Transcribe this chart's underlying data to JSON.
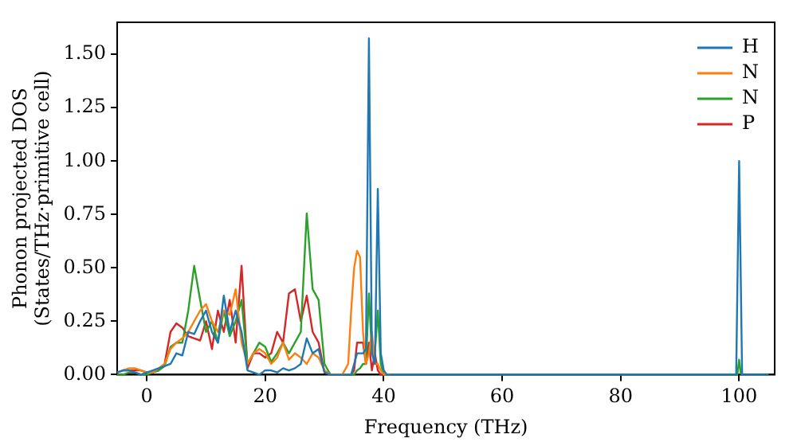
{
  "chart_data": {
    "type": "line",
    "xlabel": "Frequency (THz)",
    "ylabel": "Phonon projected DOS\n(States/THz·primitive cell)",
    "x": [
      -5,
      -4,
      -3,
      -2,
      -1,
      0,
      1,
      2,
      3,
      4,
      5,
      6,
      7,
      8,
      9,
      10,
      11,
      12,
      13,
      14,
      15,
      16,
      17,
      18,
      19,
      20,
      21,
      22,
      23,
      24,
      25,
      26,
      27,
      28,
      29,
      30,
      31,
      32,
      33,
      34,
      34.5,
      35,
      35.5,
      36,
      36.5,
      37,
      37.5,
      38,
      38.5,
      39,
      39.5,
      40,
      40.5,
      41,
      45,
      99,
      99.5,
      100,
      100.5,
      101,
      105
    ],
    "series": [
      {
        "name": "H",
        "color": "#1f77b4",
        "values": [
          0.01,
          0.02,
          0.02,
          0.01,
          0,
          0.01,
          0.02,
          0.03,
          0.04,
          0.05,
          0.1,
          0.09,
          0.2,
          0.19,
          0.25,
          0.3,
          0.2,
          0.15,
          0.37,
          0.2,
          0.3,
          0.2,
          0.02,
          0.01,
          0,
          0.02,
          0.02,
          0.01,
          0.03,
          0.02,
          0.03,
          0.05,
          0.17,
          0.1,
          0.12,
          0.01,
          0,
          0,
          0,
          0,
          0,
          0.05,
          0.1,
          0.1,
          0.1,
          0.12,
          1.575,
          0.1,
          0.05,
          0.87,
          0.1,
          0.02,
          0,
          0,
          0,
          0,
          0,
          1.0,
          0,
          0,
          0
        ]
      },
      {
        "name": "N",
        "color": "#ff7f0e",
        "x": [
          -5,
          -4,
          -3,
          -2,
          -1,
          0,
          1,
          2,
          3,
          4,
          5,
          6,
          7,
          8,
          9,
          10,
          11,
          12,
          13,
          14,
          15,
          16,
          17,
          18,
          19,
          20,
          21,
          22,
          23,
          24,
          25,
          26,
          27,
          28,
          29,
          30,
          31,
          32,
          33,
          34,
          34.5,
          35,
          35.5,
          36,
          36.5,
          37,
          37.5,
          38,
          38.5,
          39,
          39.5,
          40,
          40.5,
          41
        ],
        "values": [
          0.01,
          0.02,
          0.03,
          0.03,
          0.02,
          0.01,
          0.01,
          0.03,
          0.05,
          0.12,
          0.15,
          0.17,
          0.2,
          0.25,
          0.3,
          0.33,
          0.25,
          0.2,
          0.3,
          0.28,
          0.4,
          0.15,
          0.05,
          0.1,
          0.12,
          0.1,
          0.05,
          0.08,
          0.15,
          0.07,
          0.1,
          0.08,
          0.05,
          0.1,
          0.08,
          0.02,
          0,
          0,
          0,
          0.05,
          0.3,
          0.5,
          0.58,
          0.55,
          0.2,
          0.05,
          0.1,
          0.2,
          0.05,
          0.05,
          0.02,
          0,
          0,
          0
        ]
      },
      {
        "name": "N",
        "color": "#2ca02c",
        "x": [
          -5,
          -4,
          -3,
          -2,
          -1,
          0,
          1,
          2,
          3,
          4,
          5,
          6,
          7,
          8,
          9,
          10,
          11,
          12,
          13,
          14,
          15,
          16,
          17,
          18,
          19,
          20,
          21,
          22,
          23,
          24,
          25,
          26,
          27,
          28,
          29,
          30,
          31,
          32,
          33,
          34,
          34.5,
          35,
          35.5,
          36,
          36.5,
          37,
          37.5,
          38,
          38.5,
          39,
          39.5,
          40,
          40.5,
          41,
          99.7,
          100,
          100.3
        ],
        "values": [
          0,
          0,
          0.01,
          0.01,
          0,
          0,
          0.01,
          0.02,
          0.04,
          0.13,
          0.15,
          0.15,
          0.3,
          0.51,
          0.35,
          0.2,
          0.25,
          0.15,
          0.3,
          0.18,
          0.25,
          0.35,
          0.05,
          0.1,
          0.15,
          0.13,
          0.06,
          0.1,
          0.15,
          0.1,
          0.15,
          0.2,
          0.755,
          0.4,
          0.35,
          0.05,
          0,
          0,
          0,
          0,
          0,
          0,
          0.02,
          0.03,
          0.05,
          0.05,
          0.38,
          0.1,
          0.1,
          0.3,
          0.05,
          0,
          0,
          0,
          0,
          0.07,
          0
        ]
      },
      {
        "name": "P",
        "color": "#d62728",
        "x": [
          -5,
          -4,
          -3,
          -2,
          -1,
          0,
          1,
          2,
          3,
          4,
          5,
          6,
          7,
          8,
          9,
          10,
          11,
          12,
          13,
          14,
          15,
          16,
          17,
          18,
          19,
          20,
          21,
          22,
          23,
          24,
          25,
          26,
          27,
          28,
          29,
          30,
          31,
          32,
          33,
          34,
          34.5,
          35,
          35.5,
          36,
          36.5,
          37,
          37.5,
          38,
          38.5,
          39,
          39.5,
          40,
          40.5
        ],
        "values": [
          0.01,
          0.02,
          0.02,
          0.02,
          0.02,
          0.01,
          0.01,
          0.02,
          0.05,
          0.2,
          0.24,
          0.22,
          0.18,
          0.17,
          0.16,
          0.25,
          0.12,
          0.3,
          0.2,
          0.35,
          0.15,
          0.51,
          0.03,
          0.1,
          0.1,
          0.08,
          0.1,
          0.2,
          0.15,
          0.38,
          0.4,
          0.25,
          0.37,
          0.2,
          0.15,
          0.01,
          0,
          0,
          0,
          0,
          0,
          0.02,
          0.15,
          0.15,
          0.15,
          0.05,
          0.15,
          0.02,
          0.1,
          0.02,
          0,
          0,
          0
        ]
      }
    ],
    "xlim": [
      -5,
      106
    ],
    "xticks": [
      0,
      20,
      40,
      60,
      80,
      100
    ],
    "ylim": [
      0,
      1.65
    ],
    "yticks": [
      {
        "value": 0,
        "label": "0.00"
      },
      {
        "value": 0.25,
        "label": "0.25"
      },
      {
        "value": 0.5,
        "label": "0.50"
      },
      {
        "value": 0.75,
        "label": "0.75"
      },
      {
        "value": 1,
        "label": "1.00"
      },
      {
        "value": 1.25,
        "label": "1.25"
      },
      {
        "value": 1.5,
        "label": "1.50"
      }
    ],
    "legend": "top right",
    "grid": false,
    "marker": "none",
    "line_style": "solid"
  }
}
